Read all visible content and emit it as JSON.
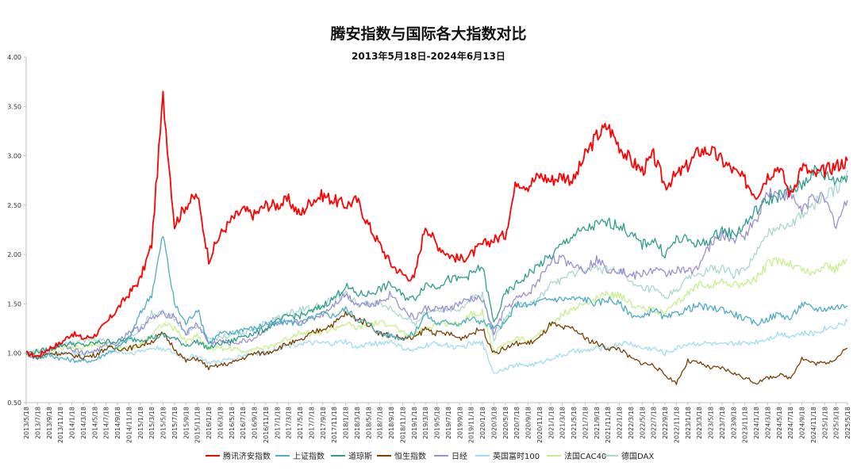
{
  "header": {
    "title": "腾安指数与国际各大指数对比",
    "subtitle": "2013年5月18日-2024年6月13日"
  },
  "chart_data": {
    "type": "line",
    "title": "腾安指数与国际各大指数对比",
    "subtitle": "2013年5月18日-2024年6月13日",
    "xlabel": "",
    "ylabel": "",
    "ylim": [
      0.5,
      4.0
    ],
    "yticks": [
      "0.50",
      "1.00",
      "1.50",
      "2.00",
      "2.50",
      "3.00",
      "3.50",
      "4.00"
    ],
    "x": [
      "2013/5/18",
      "2013/7/18",
      "2013/9/18",
      "2013/11/18",
      "2014/1/18",
      "2014/3/18",
      "2014/5/18",
      "2014/7/18",
      "2014/9/18",
      "2014/11/18",
      "2015/1/18",
      "2015/3/18",
      "2015/5/18",
      "2015/7/18",
      "2015/9/18",
      "2015/11/18",
      "2016/1/18",
      "2016/3/18",
      "2016/5/18",
      "2016/7/18",
      "2016/9/18",
      "2016/11/18",
      "2017/1/18",
      "2017/3/18",
      "2017/5/18",
      "2017/7/18",
      "2017/9/18",
      "2017/11/18",
      "2018/1/18",
      "2018/3/18",
      "2018/5/18",
      "2018/7/18",
      "2018/9/18",
      "2018/11/18",
      "2019/1/18",
      "2019/3/18",
      "2019/5/18",
      "2019/7/18",
      "2019/9/18",
      "2019/11/18",
      "2020/1/18",
      "2020/3/18",
      "2020/5/18",
      "2020/7/18",
      "2020/9/18",
      "2020/11/18",
      "2021/1/18",
      "2021/3/18",
      "2021/5/18",
      "2021/7/18",
      "2021/9/18",
      "2021/11/18",
      "2022/1/18",
      "2022/3/18",
      "2022/5/18",
      "2022/7/18",
      "2022/9/18",
      "2022/11/18",
      "2023/1/18",
      "2023/3/18",
      "2023/5/18",
      "2023/7/18",
      "2023/9/18",
      "2023/11/18",
      "2024/1/18",
      "2024/3/18",
      "2024/5/18",
      "2024/7/18",
      "2024/9/18",
      "2024/11/18",
      "2025/1/18",
      "2025/3/18",
      "2025/5/18"
    ],
    "legend_position": "bottom",
    "grid": false,
    "series": [
      {
        "name": "腾讯济安指数",
        "color": "#ff0000",
        "values": [
          1.0,
          0.97,
          1.05,
          1.1,
          1.2,
          1.15,
          1.18,
          1.3,
          1.45,
          1.6,
          1.75,
          2.1,
          3.6,
          2.3,
          2.5,
          2.6,
          1.95,
          2.2,
          2.35,
          2.45,
          2.4,
          2.5,
          2.5,
          2.55,
          2.4,
          2.55,
          2.6,
          2.55,
          2.5,
          2.55,
          2.3,
          2.1,
          1.9,
          1.8,
          1.75,
          2.3,
          2.1,
          2.0,
          1.95,
          2.0,
          2.1,
          2.15,
          2.2,
          2.75,
          2.7,
          2.8,
          2.75,
          2.8,
          2.75,
          3.0,
          3.2,
          3.3,
          3.1,
          2.95,
          2.85,
          3.0,
          2.7,
          2.8,
          2.9,
          3.05,
          3.05,
          2.95,
          2.85,
          2.75,
          2.6,
          2.8,
          2.9,
          2.6,
          2.9,
          2.8,
          2.85,
          2.9,
          2.95
        ]
      },
      {
        "name": "上证指数",
        "color": "#4bacc6",
        "values": [
          1.0,
          0.95,
          0.98,
          0.95,
          0.93,
          0.92,
          0.93,
          1.0,
          1.05,
          1.15,
          1.4,
          1.6,
          2.2,
          1.5,
          1.3,
          1.45,
          1.1,
          1.2,
          1.2,
          1.25,
          1.25,
          1.3,
          1.3,
          1.32,
          1.3,
          1.35,
          1.4,
          1.38,
          1.45,
          1.35,
          1.3,
          1.2,
          1.18,
          1.15,
          1.2,
          1.4,
          1.3,
          1.32,
          1.3,
          1.35,
          1.32,
          1.25,
          1.3,
          1.5,
          1.48,
          1.52,
          1.55,
          1.55,
          1.55,
          1.55,
          1.5,
          1.55,
          1.5,
          1.4,
          1.35,
          1.45,
          1.35,
          1.4,
          1.45,
          1.48,
          1.45,
          1.45,
          1.4,
          1.35,
          1.3,
          1.35,
          1.4,
          1.35,
          1.5,
          1.45,
          1.45,
          1.47,
          1.48
        ]
      },
      {
        "name": "道琼斯",
        "color": "#2e9e8a",
        "values": [
          1.0,
          1.02,
          1.04,
          1.08,
          1.1,
          1.08,
          1.1,
          1.12,
          1.12,
          1.14,
          1.14,
          1.16,
          1.18,
          1.15,
          1.08,
          1.12,
          1.05,
          1.1,
          1.12,
          1.18,
          1.2,
          1.25,
          1.32,
          1.38,
          1.38,
          1.42,
          1.48,
          1.56,
          1.68,
          1.6,
          1.6,
          1.65,
          1.7,
          1.58,
          1.55,
          1.7,
          1.68,
          1.75,
          1.75,
          1.8,
          1.88,
          1.3,
          1.6,
          1.7,
          1.8,
          1.9,
          1.98,
          2.1,
          2.2,
          2.25,
          2.3,
          2.32,
          2.3,
          2.2,
          2.1,
          2.15,
          2.0,
          2.15,
          2.15,
          2.1,
          2.15,
          2.25,
          2.2,
          2.3,
          2.45,
          2.55,
          2.6,
          2.65,
          2.7,
          2.85,
          2.8,
          2.75,
          2.8
        ]
      },
      {
        "name": "恒生指数",
        "color": "#7b3f00",
        "values": [
          1.0,
          0.95,
          1.0,
          1.0,
          0.98,
          0.96,
          0.98,
          1.05,
          1.05,
          1.05,
          1.08,
          1.12,
          1.2,
          1.05,
          0.92,
          0.95,
          0.85,
          0.88,
          0.9,
          0.95,
          1.0,
          1.0,
          1.05,
          1.1,
          1.12,
          1.2,
          1.25,
          1.3,
          1.4,
          1.35,
          1.3,
          1.2,
          1.18,
          1.15,
          1.15,
          1.25,
          1.2,
          1.2,
          1.15,
          1.2,
          1.25,
          1.0,
          1.05,
          1.1,
          1.1,
          1.15,
          1.3,
          1.25,
          1.25,
          1.15,
          1.1,
          1.05,
          1.05,
          0.95,
          0.9,
          0.88,
          0.78,
          0.7,
          0.92,
          0.9,
          0.85,
          0.85,
          0.8,
          0.75,
          0.7,
          0.75,
          0.78,
          0.75,
          0.95,
          0.9,
          0.9,
          0.95,
          1.05
        ]
      },
      {
        "name": "日经",
        "color": "#9b8fd1",
        "values": [
          1.0,
          0.95,
          1.02,
          1.1,
          1.05,
          1.0,
          1.02,
          1.08,
          1.1,
          1.22,
          1.25,
          1.35,
          1.4,
          1.38,
          1.2,
          1.3,
          1.1,
          1.12,
          1.1,
          1.12,
          1.15,
          1.25,
          1.3,
          1.3,
          1.32,
          1.35,
          1.4,
          1.5,
          1.6,
          1.5,
          1.5,
          1.52,
          1.6,
          1.45,
          1.35,
          1.45,
          1.45,
          1.45,
          1.5,
          1.55,
          1.55,
          1.2,
          1.45,
          1.55,
          1.6,
          1.75,
          1.95,
          1.95,
          1.9,
          1.85,
          1.95,
          1.85,
          1.85,
          1.78,
          1.8,
          1.85,
          1.8,
          1.85,
          1.82,
          1.9,
          2.1,
          2.2,
          2.15,
          2.2,
          2.35,
          2.65,
          2.6,
          2.6,
          2.45,
          2.6,
          2.55,
          2.3,
          2.55
        ]
      },
      {
        "name": "英国富时100",
        "color": "#9fdcf0",
        "values": [
          1.0,
          0.98,
          0.99,
          1.0,
          1.0,
          1.0,
          1.02,
          1.02,
          1.02,
          1.0,
          1.02,
          1.05,
          1.05,
          1.0,
          0.95,
          0.98,
          0.9,
          0.92,
          0.94,
          0.98,
          1.0,
          1.0,
          1.05,
          1.08,
          1.1,
          1.1,
          1.1,
          1.1,
          1.12,
          1.05,
          1.1,
          1.1,
          1.12,
          1.05,
          1.02,
          1.08,
          1.1,
          1.08,
          1.05,
          1.1,
          1.1,
          0.8,
          0.85,
          0.88,
          0.88,
          0.9,
          0.95,
          0.98,
          1.02,
          1.02,
          1.05,
          1.05,
          1.1,
          1.1,
          1.05,
          1.05,
          1.0,
          1.05,
          1.1,
          1.1,
          1.1,
          1.08,
          1.1,
          1.1,
          1.12,
          1.15,
          1.2,
          1.18,
          1.2,
          1.2,
          1.25,
          1.28,
          1.32
        ]
      },
      {
        "name": "法国CAC40",
        "color": "#c6ef8a",
        "values": [
          1.0,
          0.98,
          1.02,
          1.05,
          1.05,
          1.05,
          1.1,
          1.08,
          1.05,
          1.05,
          1.08,
          1.2,
          1.3,
          1.25,
          1.12,
          1.18,
          1.05,
          1.05,
          1.05,
          1.02,
          1.05,
          1.05,
          1.1,
          1.15,
          1.22,
          1.2,
          1.22,
          1.25,
          1.3,
          1.25,
          1.3,
          1.3,
          1.3,
          1.2,
          1.18,
          1.25,
          1.3,
          1.3,
          1.3,
          1.4,
          1.42,
          1.0,
          1.1,
          1.15,
          1.12,
          1.2,
          1.28,
          1.4,
          1.45,
          1.5,
          1.55,
          1.6,
          1.6,
          1.5,
          1.45,
          1.45,
          1.4,
          1.5,
          1.6,
          1.7,
          1.7,
          1.72,
          1.7,
          1.7,
          1.75,
          1.9,
          1.95,
          1.9,
          1.85,
          1.8,
          1.9,
          1.85,
          1.95
        ]
      },
      {
        "name": "德国DAX",
        "color": "#a8d8d0",
        "values": [
          1.0,
          1.02,
          1.05,
          1.1,
          1.12,
          1.12,
          1.15,
          1.12,
          1.1,
          1.15,
          1.25,
          1.4,
          1.42,
          1.35,
          1.2,
          1.28,
          1.15,
          1.15,
          1.2,
          1.2,
          1.25,
          1.3,
          1.35,
          1.4,
          1.45,
          1.45,
          1.5,
          1.55,
          1.6,
          1.5,
          1.5,
          1.5,
          1.45,
          1.35,
          1.3,
          1.4,
          1.45,
          1.45,
          1.45,
          1.55,
          1.6,
          1.15,
          1.35,
          1.5,
          1.5,
          1.55,
          1.7,
          1.75,
          1.8,
          1.85,
          1.85,
          1.85,
          1.85,
          1.7,
          1.65,
          1.65,
          1.55,
          1.65,
          1.75,
          1.8,
          1.85,
          1.85,
          1.8,
          1.85,
          2.0,
          2.2,
          2.3,
          2.3,
          2.4,
          2.5,
          2.6,
          2.65,
          2.85
        ]
      }
    ]
  }
}
